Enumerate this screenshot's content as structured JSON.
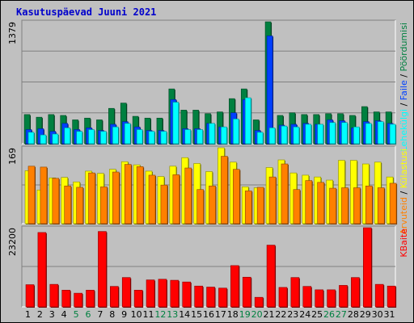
{
  "chart_title": "Kasutuspäevad Juuni 2021",
  "colors": {
    "frame_bg": "#c0c0c0",
    "panel_bg": "#c0c0c0",
    "title": "#0000cc",
    "hits": "#008040",
    "files": "#0040ff",
    "pages": "#00ffff",
    "visits": "#ffff00",
    "sites": "#ff8000",
    "kbytes": "#ff0000",
    "weekend_label": "#008040",
    "weekday_label": "#000000",
    "gridline": "#808080"
  },
  "chart_data": [
    {
      "type": "bar",
      "panel": "hits-files-pages",
      "ymax": 1379,
      "ymax_label": "1379",
      "legend": [
        {
          "label": "Pöördumisi",
          "color": "#008040"
        },
        {
          "label": "Faile",
          "color": "#0040ff"
        },
        {
          "label": "Lehekülgi",
          "color": "#00ffff"
        }
      ],
      "categories": [
        1,
        2,
        3,
        4,
        5,
        6,
        7,
        8,
        9,
        10,
        11,
        12,
        13,
        14,
        15,
        16,
        17,
        18,
        19,
        20,
        21,
        22,
        23,
        24,
        25,
        26,
        27,
        28,
        29,
        30,
        31
      ],
      "series": [
        {
          "name": "Pöördumisi",
          "values": [
            330,
            300,
            330,
            320,
            270,
            290,
            270,
            400,
            460,
            310,
            290,
            290,
            620,
            380,
            380,
            340,
            360,
            510,
            620,
            270,
            1379,
            320,
            350,
            330,
            330,
            340,
            340,
            320,
            420,
            360,
            360
          ]
        },
        {
          "name": "Faile",
          "values": [
            160,
            170,
            140,
            230,
            160,
            180,
            150,
            220,
            250,
            190,
            150,
            150,
            500,
            170,
            170,
            230,
            190,
            350,
            500,
            150,
            1220,
            210,
            220,
            230,
            220,
            270,
            260,
            180,
            250,
            260,
            230
          ]
        },
        {
          "name": "Lehekülgi",
          "values": [
            130,
            100,
            110,
            180,
            140,
            160,
            140,
            190,
            230,
            160,
            140,
            140,
            470,
            160,
            160,
            230,
            190,
            280,
            520,
            130,
            180,
            200,
            190,
            220,
            220,
            240,
            240,
            190,
            230,
            250,
            220
          ]
        }
      ]
    },
    {
      "type": "bar",
      "panel": "visits-sites",
      "ymax": 169,
      "ymax_label": "169",
      "legend": [
        {
          "label": "Külastusi",
          "color": "#ffff00"
        },
        {
          "label": "Arvuteid",
          "color": "#ff8000"
        }
      ],
      "categories": [
        1,
        2,
        3,
        4,
        5,
        6,
        7,
        8,
        9,
        10,
        11,
        12,
        13,
        14,
        15,
        16,
        17,
        18,
        19,
        20,
        21,
        22,
        23,
        24,
        25,
        26,
        27,
        28,
        29,
        30,
        31
      ],
      "series": [
        {
          "name": "Külastusi",
          "values": [
            118,
            75,
            102,
            103,
            93,
            117,
            112,
            121,
            138,
            131,
            117,
            105,
            128,
            147,
            134,
            116,
            169,
            137,
            82,
            80,
            125,
            142,
            113,
            108,
            104,
            97,
            141,
            141,
            133,
            137,
            104
          ]
        },
        {
          "name": "Arvuteid",
          "values": [
            128,
            126,
            101,
            84,
            81,
            113,
            82,
            115,
            132,
            127,
            108,
            86,
            109,
            124,
            76,
            84,
            150,
            121,
            73,
            81,
            104,
            133,
            76,
            96,
            92,
            79,
            80,
            80,
            84,
            80,
            90
          ]
        }
      ]
    },
    {
      "type": "bar",
      "panel": "kbytes",
      "ymax": 23200,
      "ymax_label": "23200",
      "legend": [
        {
          "label": "KBaite",
          "color": "#ff0000"
        }
      ],
      "categories": [
        1,
        2,
        3,
        4,
        5,
        6,
        7,
        8,
        9,
        10,
        11,
        12,
        13,
        14,
        15,
        16,
        17,
        18,
        19,
        20,
        21,
        22,
        23,
        24,
        25,
        26,
        27,
        28,
        29,
        30,
        31
      ],
      "series": [
        {
          "name": "KBaite",
          "values": [
            6500,
            21800,
            6600,
            4900,
            4000,
            4900,
            22100,
            6000,
            8600,
            4900,
            7900,
            8100,
            7800,
            7300,
            6100,
            5800,
            5500,
            12100,
            8700,
            2800,
            18100,
            5700,
            8600,
            6000,
            5000,
            5000,
            6300,
            8600,
            23200,
            6600,
            6100
          ]
        }
      ]
    }
  ],
  "x_axis": {
    "labels": [
      "1",
      "2",
      "3",
      "4",
      "5",
      "6",
      "7",
      "8",
      "9",
      "10",
      "11",
      "12",
      "13",
      "14",
      "15",
      "16",
      "17",
      "18",
      "19",
      "20",
      "21",
      "22",
      "23",
      "24",
      "25",
      "26",
      "27",
      "28",
      "29",
      "30",
      "31"
    ],
    "weekend": [
      5,
      6,
      12,
      13,
      19,
      20,
      26,
      27
    ]
  }
}
